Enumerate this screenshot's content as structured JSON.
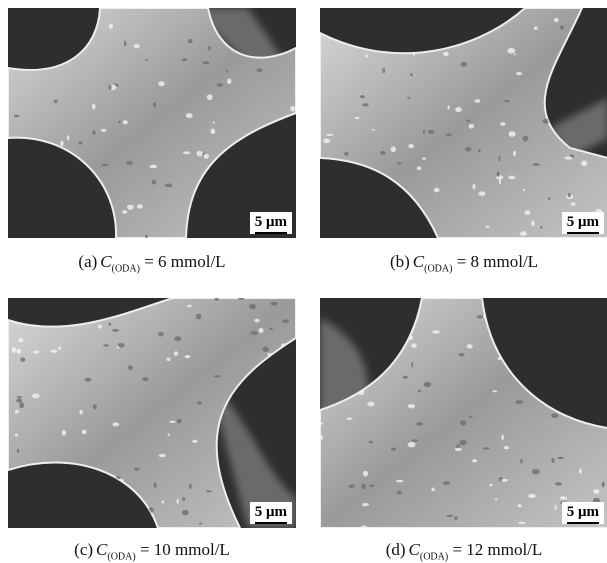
{
  "panels": [
    {
      "label": "(a)",
      "symbol": "C",
      "subscript": "(ODA)",
      "value": "= 6 mmol/L",
      "scale_bar": "5 μm"
    },
    {
      "label": "(b)",
      "symbol": "C",
      "subscript": "(ODA)",
      "value": "= 8 mmol/L",
      "scale_bar": "5 μm"
    },
    {
      "label": "(c)",
      "symbol": "C",
      "subscript": "(ODA)",
      "value": "= 10 mmol/L",
      "scale_bar": "5 μm"
    },
    {
      "label": "(d)",
      "symbol": "C",
      "subscript": "(ODA)",
      "value": "= 12 mmol/L",
      "scale_bar": "5 μm"
    }
  ]
}
